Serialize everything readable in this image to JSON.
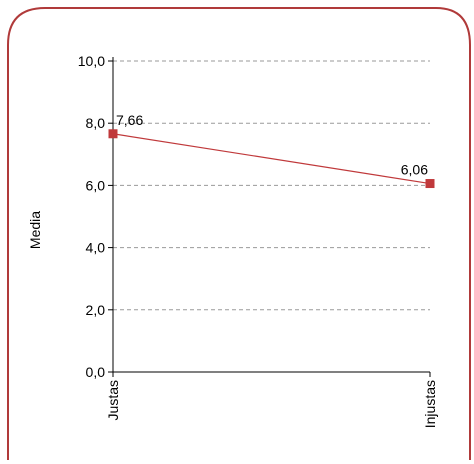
{
  "chart_data": {
    "type": "line",
    "categories": [
      "Justas",
      "Injustas"
    ],
    "series": [
      {
        "values": [
          7.66,
          6.06
        ],
        "labels": [
          "7,66",
          "6,06"
        ]
      }
    ],
    "ylabel": "Media",
    "xlabel": "",
    "ylim": [
      0,
      10
    ],
    "yticks": [
      "0,0",
      "2,0",
      "4,0",
      "6,0",
      "8,0",
      "10,0"
    ],
    "grid": true,
    "legend": "none",
    "colors": {
      "line": "#c0393b",
      "marker": "#c0393b",
      "frame": "#b03a3a",
      "grid": "#9a9a9a"
    }
  }
}
